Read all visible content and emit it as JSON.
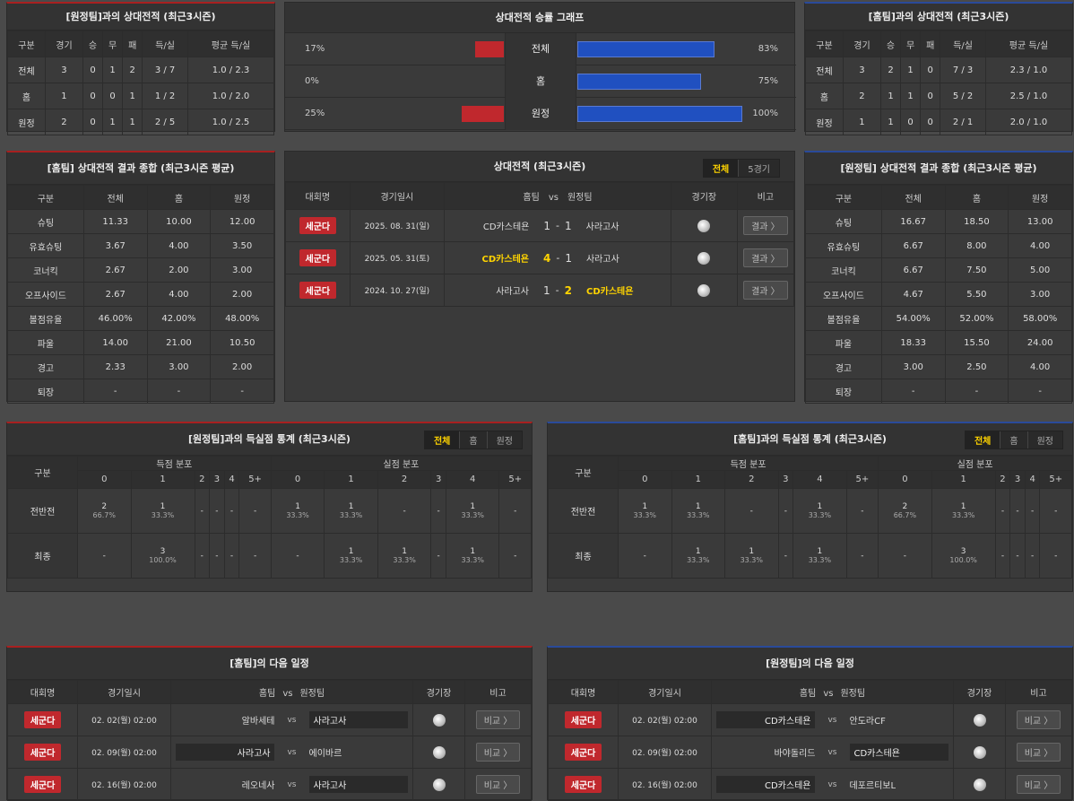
{
  "h2h_away": {
    "title": "[원정팀]과의 상대전적 (최근3시즌)",
    "headers": [
      "구분",
      "경기",
      "승",
      "무",
      "패",
      "득/실",
      "평균 득/실"
    ],
    "rows": [
      [
        "전체",
        "3",
        "0",
        "1",
        "2",
        "3 / 7",
        "1.0 / 2.3"
      ],
      [
        "홈",
        "1",
        "0",
        "0",
        "1",
        "1 / 2",
        "1.0 / 2.0"
      ],
      [
        "원정",
        "2",
        "0",
        "1",
        "1",
        "2 / 5",
        "1.0 / 2.5"
      ]
    ]
  },
  "h2h_home": {
    "title": "[홈팀]과의 상대전적 (최근3시즌)",
    "headers": [
      "구분",
      "경기",
      "승",
      "무",
      "패",
      "득/실",
      "평균 득/실"
    ],
    "rows": [
      [
        "전체",
        "3",
        "2",
        "1",
        "0",
        "7 / 3",
        "2.3 / 1.0"
      ],
      [
        "홈",
        "2",
        "1",
        "1",
        "0",
        "5 / 2",
        "2.5 / 1.0"
      ],
      [
        "원정",
        "1",
        "1",
        "0",
        "0",
        "2 / 1",
        "2.0 / 1.0"
      ]
    ]
  },
  "winrate": {
    "title": "상대전적 승률 그래프",
    "rows": [
      {
        "label": "전체",
        "left_pct": "17%",
        "right_pct": "83%",
        "left": 17,
        "right": 83
      },
      {
        "label": "홈",
        "left_pct": "0%",
        "right_pct": "75%",
        "left": 0,
        "right": 75
      },
      {
        "label": "원정",
        "left_pct": "25%",
        "right_pct": "100%",
        "left": 25,
        "right": 100
      }
    ]
  },
  "summary_home": {
    "title": "[홈팀] 상대전적 결과 종합 (최근3시즌 평균)",
    "headers": [
      "구분",
      "전체",
      "홈",
      "원정"
    ],
    "rows": [
      [
        "슈팅",
        "11.33",
        "10.00",
        "12.00"
      ],
      [
        "유효슈팅",
        "3.67",
        "4.00",
        "3.50"
      ],
      [
        "코너킥",
        "2.67",
        "2.00",
        "3.00"
      ],
      [
        "오프사이드",
        "2.67",
        "4.00",
        "2.00"
      ],
      [
        "볼점유율",
        "46.00%",
        "42.00%",
        "48.00%"
      ],
      [
        "파울",
        "14.00",
        "21.00",
        "10.50"
      ],
      [
        "경고",
        "2.33",
        "3.00",
        "2.00"
      ],
      [
        "퇴장",
        "-",
        "-",
        "-"
      ]
    ]
  },
  "summary_away": {
    "title": "[원정팀] 상대전적 결과 종합 (최근3시즌 평균)",
    "headers": [
      "구분",
      "전체",
      "홈",
      "원정"
    ],
    "rows": [
      [
        "슈팅",
        "16.67",
        "18.50",
        "13.00"
      ],
      [
        "유효슈팅",
        "6.67",
        "8.00",
        "4.00"
      ],
      [
        "코너킥",
        "6.67",
        "7.50",
        "5.00"
      ],
      [
        "오프사이드",
        "4.67",
        "5.50",
        "3.00"
      ],
      [
        "볼점유율",
        "54.00%",
        "52.00%",
        "58.00%"
      ],
      [
        "파울",
        "18.33",
        "15.50",
        "24.00"
      ],
      [
        "경고",
        "3.00",
        "2.50",
        "4.00"
      ],
      [
        "퇴장",
        "-",
        "-",
        "-"
      ]
    ]
  },
  "h2h_matches": {
    "title": "상대전적 (최근3시즌)",
    "tabs": [
      "전체",
      "5경기"
    ],
    "headers": {
      "league": "대회명",
      "date": "경기일시",
      "home": "홈팀",
      "vs": "vs",
      "away": "원정팀",
      "venue": "경기장",
      "note": "비고"
    },
    "rows": [
      {
        "league": "세군다",
        "date": "2025. 08. 31(일)",
        "home": "CD카스테욘",
        "hs": "1",
        "dash": "-",
        "as": "1",
        "away": "사라고사",
        "result": "결과 〉",
        "hw": false,
        "aw": false
      },
      {
        "league": "세군다",
        "date": "2025. 05. 31(토)",
        "home": "CD카스테욘",
        "hs": "4",
        "dash": "-",
        "as": "1",
        "away": "사라고사",
        "result": "결과 〉",
        "hw": true,
        "aw": false
      },
      {
        "league": "세군다",
        "date": "2024. 10. 27(일)",
        "home": "사라고사",
        "hs": "1",
        "dash": "-",
        "as": "2",
        "away": "CD카스테욘",
        "result": "결과 〉",
        "hw": false,
        "aw": true
      }
    ]
  },
  "goals_away": {
    "title": "[원정팀]과의 득실점 통계 (최근3시즌)",
    "tabs": [
      "전체",
      "홈",
      "원정"
    ],
    "h_cat": "구분",
    "h_scored": "득점 분포",
    "h_conceded": "실점 분포",
    "cols": [
      "0",
      "1",
      "2",
      "3",
      "4",
      "5+"
    ],
    "rows": [
      {
        "label": "전반전",
        "cells": [
          [
            "2",
            "66.7%"
          ],
          [
            "1",
            "33.3%"
          ],
          [
            "-",
            ""
          ],
          [
            "-",
            ""
          ],
          [
            "-",
            ""
          ],
          [
            "-",
            ""
          ],
          [
            "1",
            "33.3%"
          ],
          [
            "1",
            "33.3%"
          ],
          [
            "-",
            ""
          ],
          [
            "-",
            ""
          ],
          [
            "1",
            "33.3%"
          ],
          [
            "-",
            ""
          ]
        ]
      },
      {
        "label": "최종",
        "cells": [
          [
            "-",
            ""
          ],
          [
            "3",
            "100.0%"
          ],
          [
            "-",
            ""
          ],
          [
            "-",
            ""
          ],
          [
            "-",
            ""
          ],
          [
            "-",
            ""
          ],
          [
            "-",
            ""
          ],
          [
            "1",
            "33.3%"
          ],
          [
            "1",
            "33.3%"
          ],
          [
            "-",
            ""
          ],
          [
            "1",
            "33.3%"
          ],
          [
            "-",
            ""
          ]
        ]
      }
    ]
  },
  "goals_home": {
    "title": "[홈팀]과의 득실점 통계 (최근3시즌)",
    "tabs": [
      "전체",
      "홈",
      "원정"
    ],
    "h_cat": "구분",
    "h_scored": "득점 분포",
    "h_conceded": "실점 분포",
    "cols": [
      "0",
      "1",
      "2",
      "3",
      "4",
      "5+"
    ],
    "rows": [
      {
        "label": "전반전",
        "cells": [
          [
            "1",
            "33.3%"
          ],
          [
            "1",
            "33.3%"
          ],
          [
            "-",
            ""
          ],
          [
            "-",
            ""
          ],
          [
            "1",
            "33.3%"
          ],
          [
            "-",
            ""
          ],
          [
            "2",
            "66.7%"
          ],
          [
            "1",
            "33.3%"
          ],
          [
            "-",
            ""
          ],
          [
            "-",
            ""
          ],
          [
            "-",
            ""
          ],
          [
            "-",
            ""
          ]
        ]
      },
      {
        "label": "최종",
        "cells": [
          [
            "-",
            ""
          ],
          [
            "1",
            "33.3%"
          ],
          [
            "1",
            "33.3%"
          ],
          [
            "-",
            ""
          ],
          [
            "1",
            "33.3%"
          ],
          [
            "-",
            ""
          ],
          [
            "-",
            ""
          ],
          [
            "3",
            "100.0%"
          ],
          [
            "-",
            ""
          ],
          [
            "-",
            ""
          ],
          [
            "-",
            ""
          ],
          [
            "-",
            ""
          ]
        ]
      }
    ]
  },
  "next_home": {
    "title": "[홈팀]의 다음 일정",
    "headers": {
      "league": "대회명",
      "date": "경기일시",
      "home": "홈팀",
      "vs": "vs",
      "away": "원정팀",
      "venue": "경기장",
      "note": "비고"
    },
    "rows": [
      {
        "league": "세군다",
        "date": "02. 02(월) 02:00",
        "home": "알바세테",
        "vs": "vs",
        "away": "사라고사",
        "btn": "비교 〉",
        "tag": "away"
      },
      {
        "league": "세군다",
        "date": "02. 09(월) 02:00",
        "home": "사라고사",
        "vs": "vs",
        "away": "에이바르",
        "btn": "비교 〉",
        "tag": "home"
      },
      {
        "league": "세군다",
        "date": "02. 16(월) 02:00",
        "home": "레오네사",
        "vs": "vs",
        "away": "사라고사",
        "btn": "비교 〉",
        "tag": "away"
      }
    ]
  },
  "next_away": {
    "title": "[원정팀]의 다음 일정",
    "headers": {
      "league": "대회명",
      "date": "경기일시",
      "home": "홈팀",
      "vs": "vs",
      "away": "원정팀",
      "venue": "경기장",
      "note": "비고"
    },
    "rows": [
      {
        "league": "세군다",
        "date": "02. 02(월) 02:00",
        "home": "CD카스테욘",
        "vs": "vs",
        "away": "안도라CF",
        "btn": "비교 〉",
        "tag": "home"
      },
      {
        "league": "세군다",
        "date": "02. 09(월) 02:00",
        "home": "바야돌리드",
        "vs": "vs",
        "away": "CD카스테욘",
        "btn": "비교 〉",
        "tag": "away"
      },
      {
        "league": "세군다",
        "date": "02. 16(월) 02:00",
        "home": "CD카스테욘",
        "vs": "vs",
        "away": "데포르티보L",
        "btn": "비교 〉",
        "tag": "home"
      }
    ]
  },
  "colors": {
    "bar_left": "#c0282d",
    "bar_right": "#2050c0",
    "highlight": "#ffd400",
    "badge": "#c0282d"
  }
}
